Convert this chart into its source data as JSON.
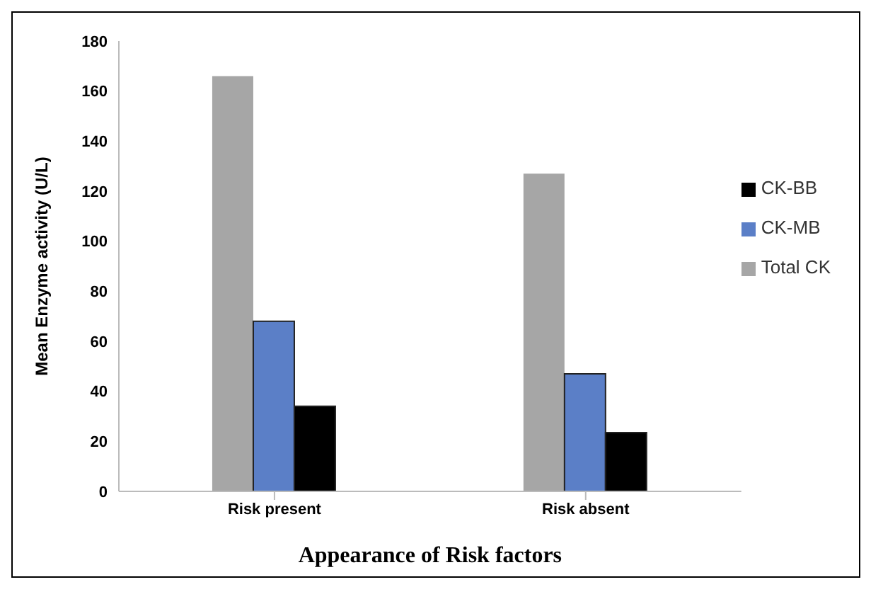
{
  "chart_data": {
    "type": "bar",
    "xlabel": "Appearance of Risk factors",
    "ylabel": "Mean Enzyme activity (U/L)",
    "categories": [
      "Risk present",
      "Risk absent"
    ],
    "series": [
      {
        "name": "Total CK",
        "color": "#a6a6a6",
        "values": [
          166,
          127
        ]
      },
      {
        "name": "CK-MB",
        "color": "#5b7fc7",
        "values": [
          68,
          47
        ]
      },
      {
        "name": "CK-BB",
        "color": "#000000",
        "values": [
          34,
          23.5
        ]
      }
    ],
    "ylim": [
      0,
      180
    ],
    "yticks": [
      0,
      20,
      40,
      60,
      80,
      100,
      120,
      140,
      160,
      180
    ],
    "grid": false,
    "legend": "right"
  }
}
